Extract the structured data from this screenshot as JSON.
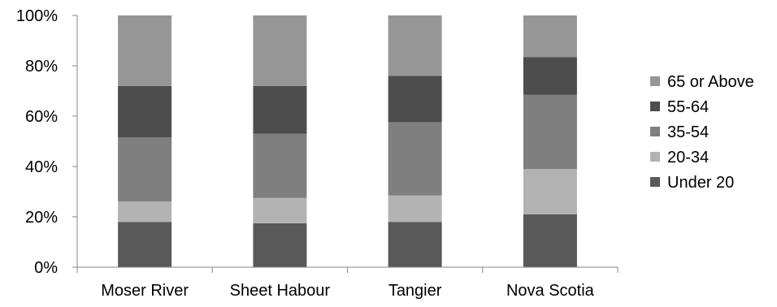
{
  "chart_data": {
    "type": "bar",
    "stacked": true,
    "percent": true,
    "categories": [
      "Moser River",
      "Sheet Habour",
      "Tangier",
      "Nova Scotia"
    ],
    "series": [
      {
        "name": "Under 20",
        "color": "#595959",
        "values": [
          18,
          17.5,
          18,
          21
        ]
      },
      {
        "name": "20-34",
        "color": "#b2b2b2",
        "values": [
          8,
          10,
          10.5,
          18
        ]
      },
      {
        "name": "35-54",
        "color": "#7f7f7f",
        "values": [
          25.5,
          25.5,
          29,
          29.5
        ]
      },
      {
        "name": "55-64",
        "color": "#4d4d4d",
        "values": [
          20.5,
          19,
          18.5,
          15
        ]
      },
      {
        "name": "65 or Above",
        "color": "#969696",
        "values": [
          28,
          28,
          24,
          16.5
        ]
      }
    ],
    "ylim": [
      0,
      100
    ],
    "yticks": [
      "0%",
      "20%",
      "40%",
      "60%",
      "80%",
      "100%"
    ],
    "xlabel": "",
    "ylabel": "",
    "title": "",
    "legend": "right",
    "grid": false
  }
}
